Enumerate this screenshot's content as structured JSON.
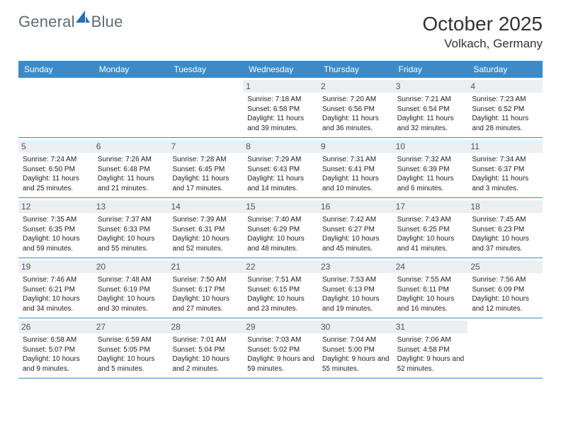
{
  "logo_text1": "General",
  "logo_text2": "Blue",
  "month_title": "October 2025",
  "location": "Volkach, Germany",
  "colors": {
    "header_bg": "#3c8bc8",
    "daynum_bg": "#eceff1",
    "rule": "#3c8bc8",
    "logo_gray": "#5f6b73",
    "logo_blue": "#2a6fb3"
  },
  "days_of_week": [
    "Sunday",
    "Monday",
    "Tuesday",
    "Wednesday",
    "Thursday",
    "Friday",
    "Saturday"
  ],
  "weeks": [
    [
      null,
      null,
      null,
      {
        "n": "1",
        "sunrise": "7:18 AM",
        "sunset": "6:58 PM",
        "daylight": "11 hours and 39 minutes."
      },
      {
        "n": "2",
        "sunrise": "7:20 AM",
        "sunset": "6:56 PM",
        "daylight": "11 hours and 36 minutes."
      },
      {
        "n": "3",
        "sunrise": "7:21 AM",
        "sunset": "6:54 PM",
        "daylight": "11 hours and 32 minutes."
      },
      {
        "n": "4",
        "sunrise": "7:23 AM",
        "sunset": "6:52 PM",
        "daylight": "11 hours and 28 minutes."
      }
    ],
    [
      {
        "n": "5",
        "sunrise": "7:24 AM",
        "sunset": "6:50 PM",
        "daylight": "11 hours and 25 minutes."
      },
      {
        "n": "6",
        "sunrise": "7:26 AM",
        "sunset": "6:48 PM",
        "daylight": "11 hours and 21 minutes."
      },
      {
        "n": "7",
        "sunrise": "7:28 AM",
        "sunset": "6:45 PM",
        "daylight": "11 hours and 17 minutes."
      },
      {
        "n": "8",
        "sunrise": "7:29 AM",
        "sunset": "6:43 PM",
        "daylight": "11 hours and 14 minutes."
      },
      {
        "n": "9",
        "sunrise": "7:31 AM",
        "sunset": "6:41 PM",
        "daylight": "11 hours and 10 minutes."
      },
      {
        "n": "10",
        "sunrise": "7:32 AM",
        "sunset": "6:39 PM",
        "daylight": "11 hours and 6 minutes."
      },
      {
        "n": "11",
        "sunrise": "7:34 AM",
        "sunset": "6:37 PM",
        "daylight": "11 hours and 3 minutes."
      }
    ],
    [
      {
        "n": "12",
        "sunrise": "7:35 AM",
        "sunset": "6:35 PM",
        "daylight": "10 hours and 59 minutes."
      },
      {
        "n": "13",
        "sunrise": "7:37 AM",
        "sunset": "6:33 PM",
        "daylight": "10 hours and 55 minutes."
      },
      {
        "n": "14",
        "sunrise": "7:39 AM",
        "sunset": "6:31 PM",
        "daylight": "10 hours and 52 minutes."
      },
      {
        "n": "15",
        "sunrise": "7:40 AM",
        "sunset": "6:29 PM",
        "daylight": "10 hours and 48 minutes."
      },
      {
        "n": "16",
        "sunrise": "7:42 AM",
        "sunset": "6:27 PM",
        "daylight": "10 hours and 45 minutes."
      },
      {
        "n": "17",
        "sunrise": "7:43 AM",
        "sunset": "6:25 PM",
        "daylight": "10 hours and 41 minutes."
      },
      {
        "n": "18",
        "sunrise": "7:45 AM",
        "sunset": "6:23 PM",
        "daylight": "10 hours and 37 minutes."
      }
    ],
    [
      {
        "n": "19",
        "sunrise": "7:46 AM",
        "sunset": "6:21 PM",
        "daylight": "10 hours and 34 minutes."
      },
      {
        "n": "20",
        "sunrise": "7:48 AM",
        "sunset": "6:19 PM",
        "daylight": "10 hours and 30 minutes."
      },
      {
        "n": "21",
        "sunrise": "7:50 AM",
        "sunset": "6:17 PM",
        "daylight": "10 hours and 27 minutes."
      },
      {
        "n": "22",
        "sunrise": "7:51 AM",
        "sunset": "6:15 PM",
        "daylight": "10 hours and 23 minutes."
      },
      {
        "n": "23",
        "sunrise": "7:53 AM",
        "sunset": "6:13 PM",
        "daylight": "10 hours and 19 minutes."
      },
      {
        "n": "24",
        "sunrise": "7:55 AM",
        "sunset": "6:11 PM",
        "daylight": "10 hours and 16 minutes."
      },
      {
        "n": "25",
        "sunrise": "7:56 AM",
        "sunset": "6:09 PM",
        "daylight": "10 hours and 12 minutes."
      }
    ],
    [
      {
        "n": "26",
        "sunrise": "6:58 AM",
        "sunset": "5:07 PM",
        "daylight": "10 hours and 9 minutes."
      },
      {
        "n": "27",
        "sunrise": "6:59 AM",
        "sunset": "5:05 PM",
        "daylight": "10 hours and 5 minutes."
      },
      {
        "n": "28",
        "sunrise": "7:01 AM",
        "sunset": "5:04 PM",
        "daylight": "10 hours and 2 minutes."
      },
      {
        "n": "29",
        "sunrise": "7:03 AM",
        "sunset": "5:02 PM",
        "daylight": "9 hours and 59 minutes."
      },
      {
        "n": "30",
        "sunrise": "7:04 AM",
        "sunset": "5:00 PM",
        "daylight": "9 hours and 55 minutes."
      },
      {
        "n": "31",
        "sunrise": "7:06 AM",
        "sunset": "4:58 PM",
        "daylight": "9 hours and 52 minutes."
      },
      null
    ]
  ]
}
